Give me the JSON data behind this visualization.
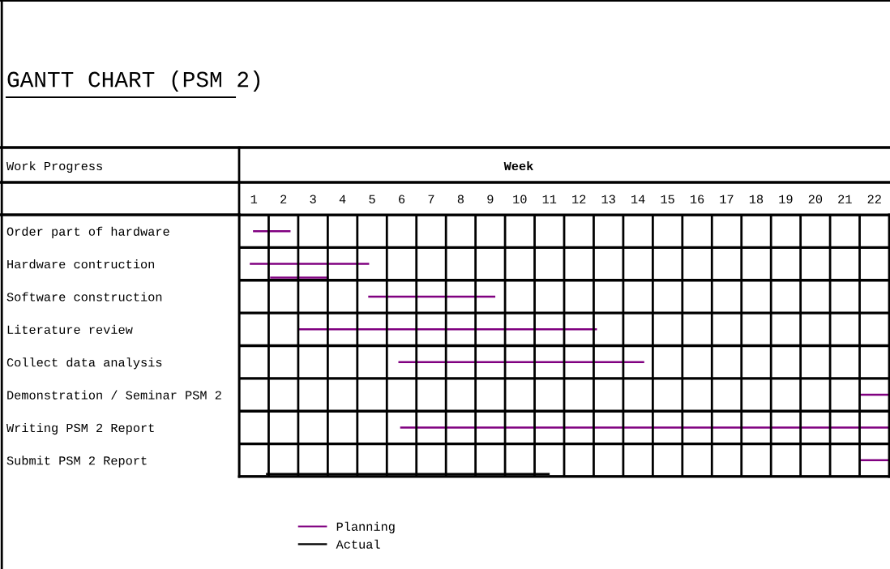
{
  "chart_data": {
    "type": "bar",
    "orientation": "horizontal",
    "title": "GANTT CHART (PSM 2)",
    "xlabel": "Week",
    "ylabel": "Work Progress",
    "categories": [
      "Order part of hardware",
      "Hardware contruction",
      "Software construction",
      "Literature review",
      "Collect data analysis",
      "Demonstration / Seminar PSM 2",
      "Writing PSM 2 Report",
      "Submit PSM 2 Report"
    ],
    "series": [
      {
        "name": "Planning",
        "color": "#800080",
        "base": [
          0.47,
          0.36,
          4.37,
          1.98,
          5.39,
          21.0,
          5.45,
          21.0
        ],
        "values": [
          1.27,
          4.04,
          4.3,
          10.13,
          8.32,
          1.0,
          16.55,
          1.0
        ]
      },
      {
        "color": "#800080",
        "base": [
          null,
          1.05,
          null,
          null,
          null,
          null,
          null,
          null
        ],
        "values": [
          null,
          1.98,
          null,
          null,
          null,
          null,
          null,
          null
        ]
      },
      {
        "name": "Actual",
        "color": "#000000",
        "base": [
          null,
          null,
          null,
          null,
          null,
          null,
          null,
          0.91
        ],
        "values": [
          null,
          null,
          null,
          null,
          null,
          null,
          null,
          9.6
        ]
      }
    ],
    "xlim": [
      0,
      22
    ],
    "xticks": [
      {
        "value": 0,
        "label": null
      },
      {
        "value": 0.5,
        "label": "1"
      },
      {
        "value": 1,
        "label": null
      },
      {
        "value": 1.5,
        "label": "2"
      },
      {
        "value": 2,
        "label": null
      },
      {
        "value": 2.5,
        "label": "3"
      },
      {
        "value": 3,
        "label": null
      },
      {
        "value": 3.5,
        "label": "4"
      },
      {
        "value": 4,
        "label": null
      },
      {
        "value": 4.5,
        "label": "5"
      },
      {
        "value": 5,
        "label": null
      },
      {
        "value": 5.5,
        "label": "6"
      },
      {
        "value": 6,
        "label": null
      },
      {
        "value": 6.5,
        "label": "7"
      },
      {
        "value": 7,
        "label": null
      },
      {
        "value": 7.5,
        "label": "8"
      },
      {
        "value": 8,
        "label": null
      },
      {
        "value": 8.5,
        "label": "9"
      },
      {
        "value": 9,
        "label": null
      },
      {
        "value": 9.5,
        "label": "10"
      },
      {
        "value": 10,
        "label": null
      },
      {
        "value": 10.5,
        "label": "11"
      },
      {
        "value": 11,
        "label": null
      },
      {
        "value": 11.5,
        "label": "12"
      },
      {
        "value": 12,
        "label": null
      },
      {
        "value": 12.5,
        "label": "13"
      },
      {
        "value": 13,
        "label": null
      },
      {
        "value": 13.5,
        "label": "14"
      },
      {
        "value": 14,
        "label": null
      },
      {
        "value": 14.5,
        "label": "15"
      },
      {
        "value": 15,
        "label": null
      },
      {
        "value": 15.5,
        "label": "16"
      },
      {
        "value": 16,
        "label": null
      },
      {
        "value": 16.5,
        "label": "17"
      },
      {
        "value": 17,
        "label": null
      },
      {
        "value": 17.5,
        "label": "18"
      },
      {
        "value": 18,
        "label": null
      },
      {
        "value": 18.5,
        "label": "19"
      },
      {
        "value": 19,
        "label": null
      },
      {
        "value": 19.5,
        "label": "20"
      },
      {
        "value": 20,
        "label": null
      },
      {
        "value": 20.5,
        "label": "21"
      },
      {
        "value": 21,
        "label": null
      },
      {
        "value": 21.5,
        "label": "22"
      }
    ],
    "grid": true,
    "legend": "bottom"
  }
}
